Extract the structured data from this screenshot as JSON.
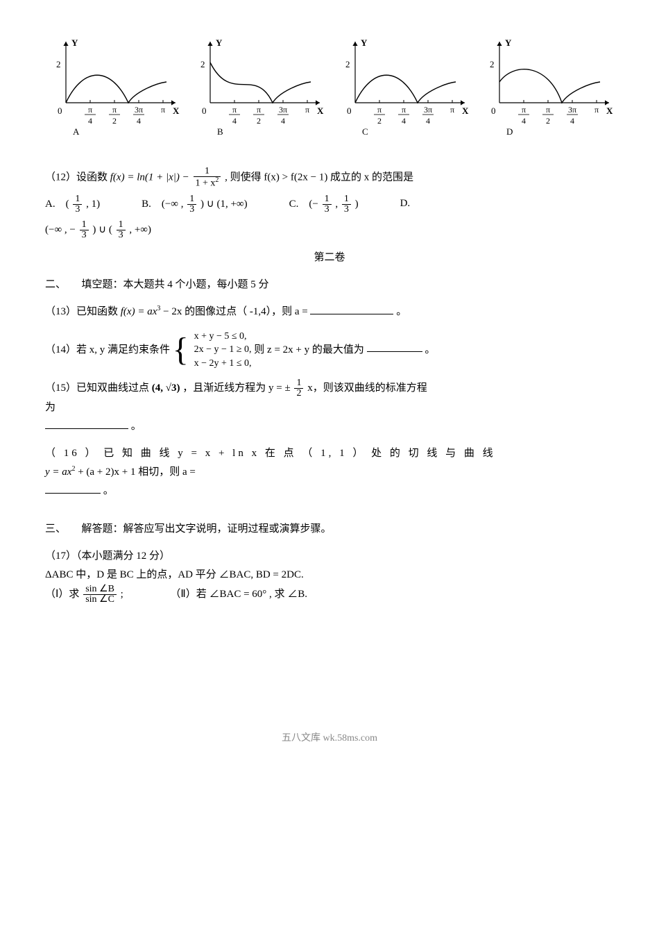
{
  "graphs": {
    "y_axis_label": "Y",
    "x_axis_label": "X",
    "y_tick_value": "2",
    "y_tick_pos": 2,
    "x_ticks_numer": [
      "π",
      "π",
      "3π",
      "π"
    ],
    "x_ticks_denom": [
      "4",
      "2",
      "4",
      ""
    ],
    "option_labels": [
      "A",
      "B",
      "C",
      "D"
    ],
    "axis_color": "#000000",
    "curve_color": "#000000",
    "curve_stroke_w": 1.4,
    "axis_stroke_w": 1.2,
    "font_size": 13,
    "curves": [
      "M 30 108 C 55 55, 95 55, 120 108 C 130 92, 160 80, 175 78",
      "M 30 50 C 60 110, 95 55, 120 108 C 130 92, 160 80, 175 78",
      "M 30 108 C 55 55, 95 55, 120 108 C 130 92, 160 80, 175 78",
      "M 30 78 C 50 50, 100 50, 120 108 C 130 92, 160 80, 175 78"
    ],
    "c_x_ticks_numer": [
      "π",
      "π",
      "3π",
      "π"
    ],
    "c_x_ticks_denom": [
      "2",
      "4",
      "4",
      ""
    ]
  },
  "q12": {
    "stem_a": "（12）设函数 ",
    "fx": "f(x) = ln(1 + |x|) − ",
    "frac_n": "1",
    "frac_d": "1 + x",
    "frac_d_sup": "2",
    "stem_b": " , 则使得 f(x) > f(2x − 1) 成立的 x 的范围是",
    "opts": {
      "A_pre": "A.　(",
      "A_frac_n": "1",
      "A_frac_d": "3",
      "A_post": ", 1)",
      "B_pre": "B.　(−∞ , ",
      "B_frac_n": "1",
      "B_frac_d": "3",
      "B_post": ") ∪ (1, +∞)",
      "C_pre": "C.　(− ",
      "C_frac1_n": "1",
      "C_frac1_d": "3",
      "C_mid": " , ",
      "C_frac2_n": "1",
      "C_frac2_d": "3",
      "C_post": ")",
      "D_label": "D.",
      "D2_pre": "(−∞ , − ",
      "D2_frac1_n": "1",
      "D2_frac1_d": "3",
      "D2_mid": ") ∪ (",
      "D2_frac2_n": "1",
      "D2_frac2_d": "3",
      "D2_post": ", +∞)"
    }
  },
  "sec2_title": "第二卷",
  "sec2": "二、　　填空题：本大题共 4 个小题，每小题 5 分",
  "q13": {
    "a": "（13）已知函数 ",
    "fx": "f(x) = ax",
    "p1": "3",
    "b": " − 2x 的图像过点（ -1,4），则 a = ",
    "dot": "。"
  },
  "q14": {
    "a": "（14）若 x, y 满足约束条件 ",
    "l1": "x + y − 5 ≤ 0,",
    "l2": "2x − y − 1 ≥ 0,",
    "l3": "x − 2y + 1 ≤ 0,",
    "b": "则 z = 2x + y 的最大值为 ",
    "dot": "。"
  },
  "q15": {
    "a": "（15）已知双曲线过点 ",
    "pt": "(4, √3)",
    "b": "，且渐近线方程为 y = ± ",
    "fn": "1",
    "fd": "2",
    "c": " x，则该双曲线的标准方程",
    "d": "为",
    "dot": "。"
  },
  "q16": {
    "a": "（ 16 ） 已 知 曲 线  y = x + ln x 在 点 （ 1, 1 ） 处 的 切 线 与 曲 线",
    "b": "y = ax",
    "p1": "2",
    "c": " + (a + 2)x + 1 相切，则 a =",
    "dot": "。"
  },
  "sec3": "三、　　解答题：解答应写出文字说明，证明过程或演算步骤。",
  "q17": {
    "t": "（17）（本小题满分 12 分）",
    "a": "ΔABC 中，D 是 BC 上的点，AD 平分 ∠BAC,  BD = 2DC.",
    "p1_pre": "（Ⅰ）求 ",
    "fn": "sin ∠B",
    "fd": "sin ∠C",
    "p1_post": " ;",
    "p2": "（Ⅱ）若 ∠BAC = 60° , 求 ∠B."
  },
  "footer": "五八文库 wk.58ms.com"
}
